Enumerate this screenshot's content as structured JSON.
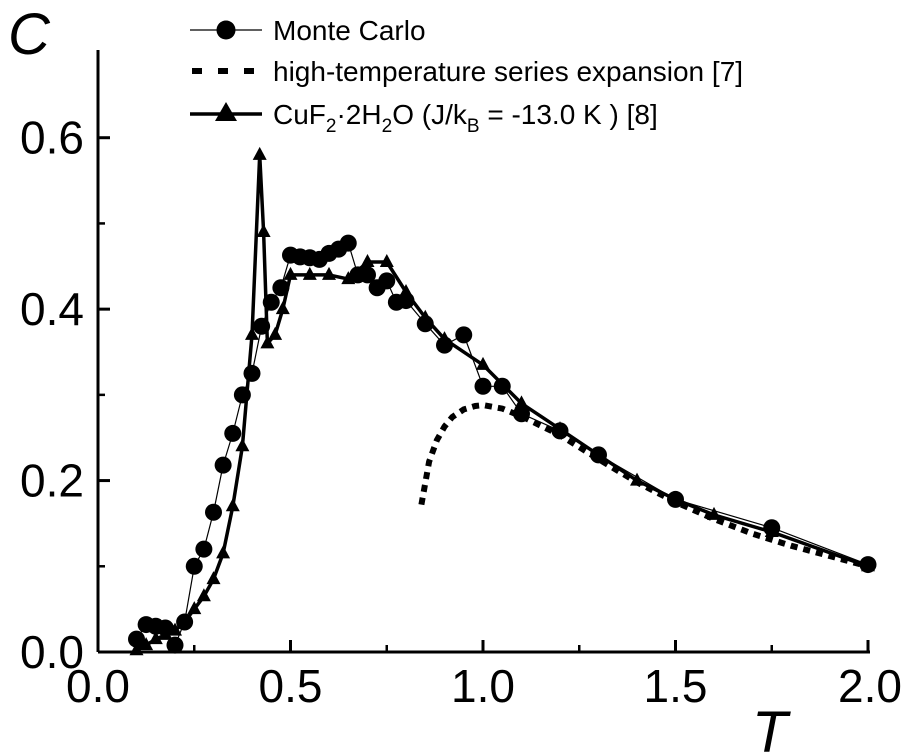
{
  "chart_data": {
    "type": "line",
    "xlabel": "T",
    "ylabel": "C",
    "xlim": [
      0.0,
      2.0
    ],
    "ylim": [
      0.0,
      0.7
    ],
    "x_ticks": [
      "0.0",
      "0.5",
      "1.0",
      "1.5",
      "2.0"
    ],
    "y_ticks": [
      "0.0",
      "0.2",
      "0.4",
      "0.6"
    ],
    "legend_position": "top",
    "series": [
      {
        "name": "Monte Carlo",
        "style": "thin-line-circles",
        "points": [
          [
            0.1,
            0.015
          ],
          [
            0.125,
            0.032
          ],
          [
            0.15,
            0.03
          ],
          [
            0.175,
            0.028
          ],
          [
            0.2,
            0.008
          ],
          [
            0.225,
            0.035
          ],
          [
            0.25,
            0.1
          ],
          [
            0.275,
            0.12
          ],
          [
            0.3,
            0.163
          ],
          [
            0.325,
            0.218
          ],
          [
            0.35,
            0.255
          ],
          [
            0.375,
            0.3
          ],
          [
            0.4,
            0.325
          ],
          [
            0.425,
            0.38
          ],
          [
            0.45,
            0.408
          ],
          [
            0.475,
            0.425
          ],
          [
            0.5,
            0.463
          ],
          [
            0.525,
            0.461
          ],
          [
            0.55,
            0.46
          ],
          [
            0.575,
            0.458
          ],
          [
            0.6,
            0.465
          ],
          [
            0.625,
            0.47
          ],
          [
            0.65,
            0.477
          ],
          [
            0.675,
            0.44
          ],
          [
            0.7,
            0.44
          ],
          [
            0.725,
            0.425
          ],
          [
            0.75,
            0.433
          ],
          [
            0.775,
            0.408
          ],
          [
            0.8,
            0.41
          ],
          [
            0.85,
            0.383
          ],
          [
            0.9,
            0.358
          ],
          [
            0.95,
            0.37
          ],
          [
            1.0,
            0.31
          ],
          [
            1.05,
            0.31
          ],
          [
            1.1,
            0.278
          ],
          [
            1.2,
            0.258
          ],
          [
            1.3,
            0.23
          ],
          [
            1.5,
            0.178
          ],
          [
            1.75,
            0.145
          ],
          [
            2.0,
            0.102
          ]
        ]
      },
      {
        "name": "high-temperature series expansion [7]",
        "style": "dotted-thick",
        "points": [
          [
            0.84,
            0.172
          ],
          [
            0.86,
            0.222
          ],
          [
            0.88,
            0.247
          ],
          [
            0.9,
            0.263
          ],
          [
            0.92,
            0.274
          ],
          [
            0.95,
            0.283
          ],
          [
            0.98,
            0.287
          ],
          [
            1.0,
            0.288
          ],
          [
            1.05,
            0.284
          ],
          [
            1.1,
            0.275
          ],
          [
            1.2,
            0.253
          ],
          [
            1.3,
            0.225
          ],
          [
            1.4,
            0.198
          ],
          [
            1.5,
            0.175
          ],
          [
            1.6,
            0.155
          ],
          [
            1.7,
            0.138
          ],
          [
            1.8,
            0.124
          ],
          [
            1.9,
            0.112
          ],
          [
            2.0,
            0.1
          ]
        ]
      },
      {
        "name": "CuF₂·2H₂O (J/kʙ = -13.0 K) [8]",
        "style": "thick-line-triangles",
        "points": [
          [
            0.1,
            0.002
          ],
          [
            0.125,
            0.008
          ],
          [
            0.15,
            0.015
          ],
          [
            0.175,
            0.02
          ],
          [
            0.2,
            0.025
          ],
          [
            0.225,
            0.035
          ],
          [
            0.25,
            0.05
          ],
          [
            0.275,
            0.065
          ],
          [
            0.3,
            0.085
          ],
          [
            0.325,
            0.115
          ],
          [
            0.35,
            0.17
          ],
          [
            0.375,
            0.24
          ],
          [
            0.4,
            0.37
          ],
          [
            0.42,
            0.58
          ],
          [
            0.43,
            0.49
          ],
          [
            0.44,
            0.36
          ],
          [
            0.46,
            0.37
          ],
          [
            0.48,
            0.4
          ],
          [
            0.5,
            0.44
          ],
          [
            0.55,
            0.44
          ],
          [
            0.6,
            0.44
          ],
          [
            0.65,
            0.435
          ],
          [
            0.7,
            0.455
          ],
          [
            0.75,
            0.455
          ],
          [
            0.8,
            0.42
          ],
          [
            0.85,
            0.39
          ],
          [
            0.9,
            0.365
          ],
          [
            1.0,
            0.335
          ],
          [
            1.1,
            0.29
          ],
          [
            1.2,
            0.26
          ],
          [
            1.3,
            0.23
          ],
          [
            1.4,
            0.2
          ],
          [
            1.5,
            0.178
          ],
          [
            1.6,
            0.16
          ],
          [
            1.75,
            0.14
          ],
          [
            2.0,
            0.1
          ]
        ]
      }
    ],
    "legend": {
      "mc_label": "Monte Carlo",
      "hts_label": "high-temperature series expansion [7]",
      "cu_part1": "CuF",
      "cu_sub1": "2",
      "cu_part2": "·2H",
      "cu_sub2": "2",
      "cu_part3": "O  (J/k",
      "cu_sub3": "B",
      "cu_part4": " = -13.0 K ) [8]"
    }
  }
}
